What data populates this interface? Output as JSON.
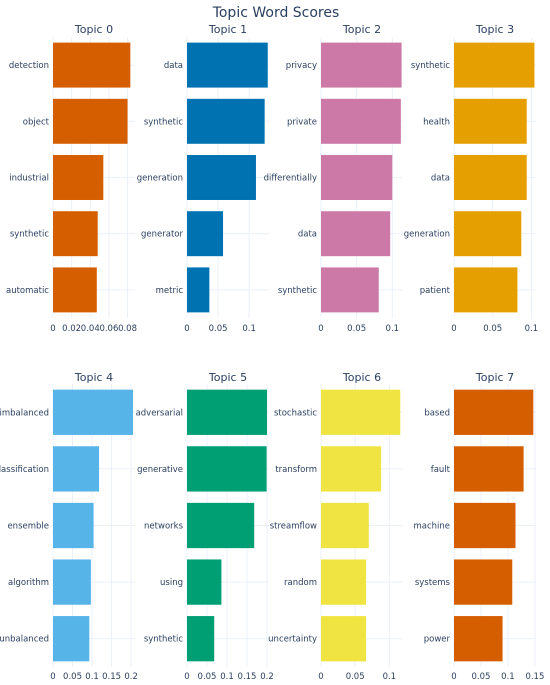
{
  "title": "Topic Word Scores",
  "chart_data": [
    {
      "type": "bar",
      "orientation": "horizontal",
      "title": "Topic 0",
      "color": "#D55E00",
      "categories": [
        "detection",
        "object",
        "industrial",
        "synthetic",
        "automatic"
      ],
      "values": [
        0.083,
        0.08,
        0.054,
        0.048,
        0.047
      ],
      "xlim": [
        0,
        0.088
      ],
      "xticks": [
        0,
        0.02,
        0.04,
        0.06,
        0.08
      ],
      "xtick_labels": [
        "0",
        "0.02",
        "0.04",
        "0.06",
        "0.08"
      ]
    },
    {
      "type": "bar",
      "orientation": "horizontal",
      "title": "Topic 1",
      "color": "#0072B2",
      "categories": [
        "data",
        "synthetic",
        "generation",
        "generator",
        "metric"
      ],
      "values": [
        0.13,
        0.125,
        0.111,
        0.058,
        0.036
      ],
      "xlim": [
        0,
        0.132
      ],
      "xticks": [
        0,
        0.05,
        0.1
      ],
      "xtick_labels": [
        "0",
        "0.05",
        "0.1"
      ]
    },
    {
      "type": "bar",
      "orientation": "horizontal",
      "title": "Topic 2",
      "color": "#CC79A7",
      "categories": [
        "privacy",
        "private",
        "differentially",
        "data",
        "synthetic"
      ],
      "values": [
        0.113,
        0.112,
        0.1,
        0.097,
        0.081
      ],
      "xlim": [
        0,
        0.115
      ],
      "xticks": [
        0,
        0.05,
        0.1
      ],
      "xtick_labels": [
        "0",
        "0.05",
        "0.1"
      ]
    },
    {
      "type": "bar",
      "orientation": "horizontal",
      "title": "Topic 3",
      "color": "#E69F00",
      "categories": [
        "synthetic",
        "health",
        "data",
        "generation",
        "patient"
      ],
      "values": [
        0.104,
        0.094,
        0.094,
        0.087,
        0.082
      ],
      "xlim": [
        0,
        0.106
      ],
      "xticks": [
        0,
        0.05,
        0.1
      ],
      "xtick_labels": [
        "0",
        "0.05",
        "0.1"
      ]
    },
    {
      "type": "bar",
      "orientation": "horizontal",
      "title": "Topic 4",
      "color": "#56B4E9",
      "categories": [
        "imbalanced",
        "classification",
        "ensemble",
        "algorithm",
        "unbalanced"
      ],
      "values": [
        0.205,
        0.118,
        0.104,
        0.097,
        0.093
      ],
      "xlim": [
        0,
        0.21
      ],
      "xticks": [
        0,
        0.05,
        0.1,
        0.15,
        0.2
      ],
      "xtick_labels": [
        "0",
        "0.05",
        "0.1",
        "0.15",
        "0.2"
      ]
    },
    {
      "type": "bar",
      "orientation": "horizontal",
      "title": "Topic 5",
      "color": "#009E73",
      "categories": [
        "adversarial",
        "generative",
        "networks",
        "using",
        "synthetic"
      ],
      "values": [
        0.2,
        0.199,
        0.168,
        0.086,
        0.068
      ],
      "xlim": [
        0,
        0.205
      ],
      "xticks": [
        0,
        0.05,
        0.1,
        0.15,
        0.2
      ],
      "xtick_labels": [
        "0",
        "0.05",
        "0.1",
        "0.15",
        "0.2"
      ]
    },
    {
      "type": "bar",
      "orientation": "horizontal",
      "title": "Topic 6",
      "color": "#F0E442",
      "categories": [
        "stochastic",
        "transform",
        "streamflow",
        "random",
        "uncertainty"
      ],
      "values": [
        0.116,
        0.088,
        0.07,
        0.066,
        0.066
      ],
      "xlim": [
        0,
        0.12
      ],
      "xticks": [
        0,
        0.05,
        0.1
      ],
      "xtick_labels": [
        "0",
        "0.05",
        "0.1"
      ]
    },
    {
      "type": "bar",
      "orientation": "horizontal",
      "title": "Topic 7",
      "color": "#D55E00",
      "categories": [
        "based",
        "fault",
        "machine",
        "systems",
        "power"
      ],
      "values": [
        0.147,
        0.129,
        0.114,
        0.108,
        0.09
      ],
      "xlim": [
        0,
        0.152
      ],
      "xticks": [
        0,
        0.05,
        0.1,
        0.15
      ],
      "xtick_labels": [
        "0",
        "0.05",
        "0.1",
        "0.15"
      ]
    }
  ]
}
